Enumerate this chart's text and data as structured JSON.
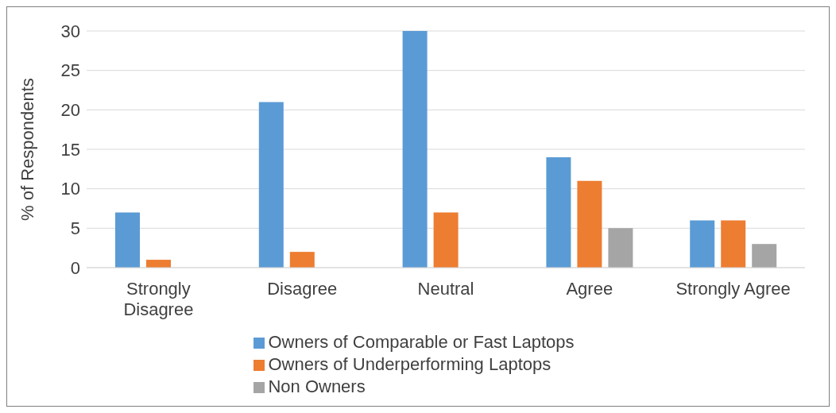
{
  "chart_data": {
    "type": "bar",
    "ylabel": "% of Respondents",
    "categories": [
      "Strongly Disagree",
      "Disagree",
      "Neutral",
      "Agree",
      "Strongly Agree"
    ],
    "series": [
      {
        "name": "Owners of Comparable or Fast Laptops",
        "color": "#5b9bd5",
        "values": [
          7,
          21,
          30,
          14,
          6
        ]
      },
      {
        "name": "Owners of Underperforming Laptops",
        "color": "#ed7d31",
        "values": [
          1,
          2,
          7,
          11,
          6
        ]
      },
      {
        "name": "Non Owners",
        "color": "#a5a5a5",
        "values": [
          0,
          0,
          0,
          5,
          3
        ]
      }
    ],
    "ylim": [
      0,
      30
    ],
    "yticks": [
      0,
      5,
      10,
      15,
      20,
      25,
      30
    ],
    "grid": "y",
    "legend": "bottom"
  }
}
